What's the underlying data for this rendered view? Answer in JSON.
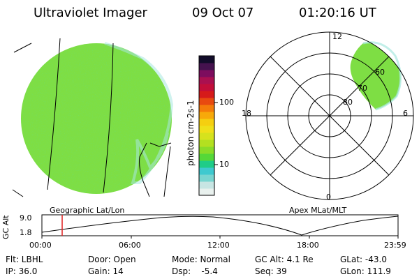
{
  "header": {
    "title": "Ultraviolet Imager",
    "date": "09 Oct 07",
    "time": "01:20:16 UT"
  },
  "colorbar": {
    "label": "photon cm-2s-1",
    "ticks": [
      "100",
      "10"
    ],
    "colors": [
      "#e9f1ee",
      "#c7e5e3",
      "#78d5d0",
      "#3ec9cf",
      "#1fcc88",
      "#55d838",
      "#8adc28",
      "#b3e020",
      "#d6e21d",
      "#efe01a",
      "#f5cf10",
      "#f7a90a",
      "#f47c0a",
      "#e84a10",
      "#d61a1a",
      "#c20e3a",
      "#aa1050",
      "#7d0d5e",
      "#45124e",
      "#120c2a"
    ]
  },
  "geo_panel": {
    "label": "Geographic Lat/Lon",
    "fill_color": "#7ede44"
  },
  "polar_panel": {
    "label": "Apex MLat/MLT",
    "mlt_labels": {
      "top": "12",
      "left": "18",
      "right": "6",
      "bottom": "0"
    },
    "lat_labels": [
      "60",
      "70",
      "80"
    ]
  },
  "timeline": {
    "axis_label": "GC Alt",
    "y_ticks": [
      "9.0",
      "1.8"
    ],
    "x_ticks": [
      "00:00",
      "06:00",
      "12:00",
      "18:00",
      "23:59"
    ],
    "marker_color": "#e02020"
  },
  "status": {
    "flt": "Flt: LBHL",
    "ip": "IP: 36.0",
    "door": "Door: Open",
    "gain": "Gain: 14",
    "mode": "Mode: Normal",
    "dsp": "Dsp:    -5.4",
    "gcalt": "GC Alt: 4.1 Re",
    "seq": "Seq: 39",
    "glat": "GLat: -43.0",
    "glon": "GLon: 111.9"
  }
}
